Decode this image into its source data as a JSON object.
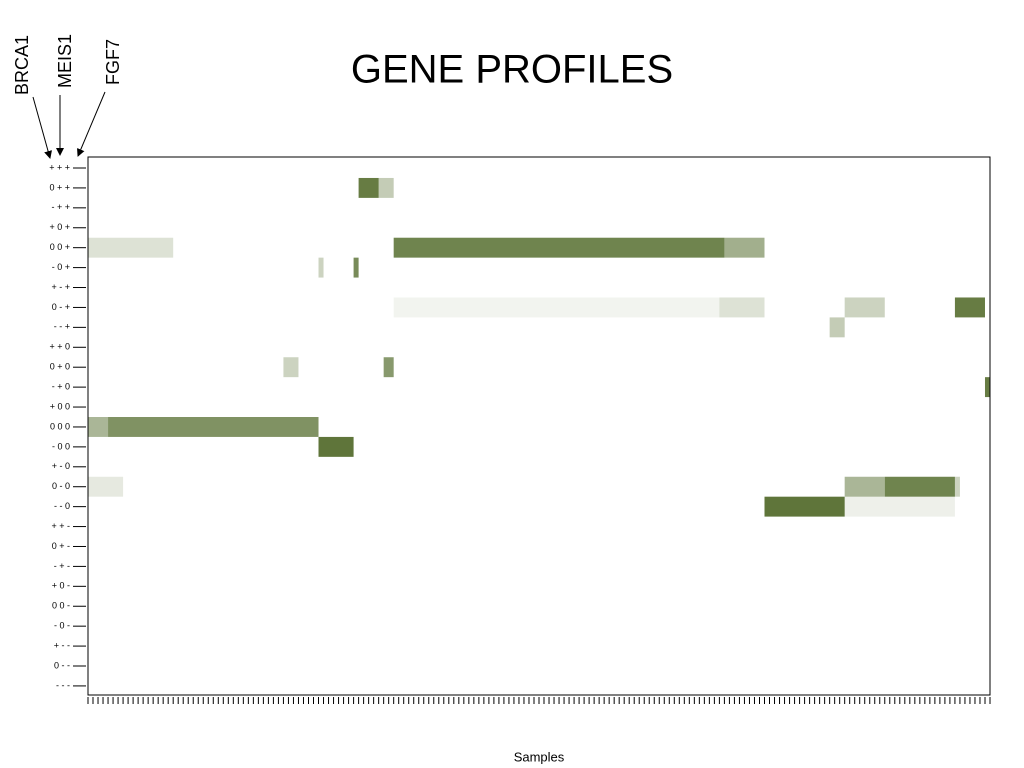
{
  "chart_data": {
    "type": "heatmap",
    "title": "GENE PROFILES",
    "x_label": "Samples",
    "genes": [
      "BRCA1",
      "MEIS1",
      "FGF7"
    ],
    "rows": [
      "+ + +",
      "0 + +",
      "- + +",
      "+ 0 +",
      "0 0 +",
      "- 0 +",
      "+ - +",
      "0 - +",
      "- - +",
      "+ + 0",
      "0 + 0",
      "- + 0",
      "+ 0 0",
      "0 0 0",
      "- 0 0",
      "+ - 0",
      "0 - 0",
      "- - 0",
      "+ + -",
      "0 + -",
      "- + -",
      "+ 0 -",
      "0 0 -",
      "- 0 -",
      "+ - -",
      "0 - -",
      "- - -"
    ],
    "color": "#566e2f",
    "xlim": [
      0,
      180
    ],
    "xticks": [
      0,
      1,
      2,
      3,
      4,
      5,
      6,
      7,
      8,
      9,
      10,
      11,
      12,
      13,
      14,
      15,
      16,
      17,
      18,
      19,
      20,
      21,
      22,
      23,
      24,
      25,
      26,
      27,
      28,
      29,
      30,
      31,
      32,
      33,
      34,
      35,
      36,
      37,
      38,
      39,
      40,
      41,
      42,
      43,
      44,
      45,
      46,
      47,
      48,
      49,
      50,
      51,
      52,
      53,
      54,
      55,
      56,
      57,
      58,
      59,
      60,
      61,
      62,
      63,
      64,
      65,
      66,
      67,
      68,
      69,
      70,
      71,
      72,
      73,
      74,
      75,
      76,
      77,
      78,
      79,
      80,
      81,
      82,
      83,
      84,
      85,
      86,
      87,
      88,
      89,
      90,
      91,
      92,
      93,
      94,
      95,
      96,
      97,
      98,
      99,
      100,
      101,
      102,
      103,
      104,
      105,
      106,
      107,
      108,
      109,
      110,
      111,
      112,
      113,
      114,
      115,
      116,
      117,
      118,
      119,
      120,
      121,
      122,
      123,
      124,
      125,
      126,
      127,
      128,
      129,
      130,
      131,
      132,
      133,
      134,
      135,
      136,
      137,
      138,
      139,
      140,
      141,
      142,
      143,
      144,
      145,
      146,
      147,
      148,
      149,
      150,
      151,
      152,
      153,
      154,
      155,
      156,
      157,
      158,
      159,
      160,
      161,
      162,
      163,
      164,
      165,
      166,
      167,
      168,
      169,
      170,
      171,
      172,
      173,
      174,
      175,
      176,
      177,
      178,
      179,
      180
    ],
    "cells": [
      {
        "row": 1,
        "from": 54,
        "to": 58,
        "value": 0.9
      },
      {
        "row": 1,
        "from": 58,
        "to": 61,
        "value": 0.35
      },
      {
        "row": 4,
        "from": 0,
        "to": 17,
        "value": 0.2
      },
      {
        "row": 4,
        "from": 61,
        "to": 127,
        "value": 0.85
      },
      {
        "row": 4,
        "from": 127,
        "to": 135,
        "value": 0.55
      },
      {
        "row": 5,
        "from": 46,
        "to": 47,
        "value": 0.3
      },
      {
        "row": 5,
        "from": 53,
        "to": 54,
        "value": 0.8
      },
      {
        "row": 7,
        "from": 61,
        "to": 126,
        "value": 0.08
      },
      {
        "row": 7,
        "from": 126,
        "to": 135,
        "value": 0.2
      },
      {
        "row": 7,
        "from": 151,
        "to": 159,
        "value": 0.3
      },
      {
        "row": 7,
        "from": 173,
        "to": 179,
        "value": 0.9
      },
      {
        "row": 8,
        "from": 148,
        "to": 151,
        "value": 0.35
      },
      {
        "row": 10,
        "from": 39,
        "to": 42,
        "value": 0.3
      },
      {
        "row": 10,
        "from": 59,
        "to": 61,
        "value": 0.7
      },
      {
        "row": 11,
        "from": 179,
        "to": 180,
        "value": 0.9
      },
      {
        "row": 13,
        "from": 0,
        "to": 4,
        "value": 0.5
      },
      {
        "row": 13,
        "from": 4,
        "to": 46,
        "value": 0.75
      },
      {
        "row": 14,
        "from": 46,
        "to": 53,
        "value": 0.95
      },
      {
        "row": 16,
        "from": 0,
        "to": 7,
        "value": 0.15
      },
      {
        "row": 16,
        "from": 151,
        "to": 159,
        "value": 0.5
      },
      {
        "row": 16,
        "from": 159,
        "to": 173,
        "value": 0.85
      },
      {
        "row": 16,
        "from": 173,
        "to": 174,
        "value": 0.3
      },
      {
        "row": 17,
        "from": 135,
        "to": 151,
        "value": 0.95
      },
      {
        "row": 17,
        "from": 151,
        "to": 173,
        "value": 0.1
      }
    ]
  }
}
